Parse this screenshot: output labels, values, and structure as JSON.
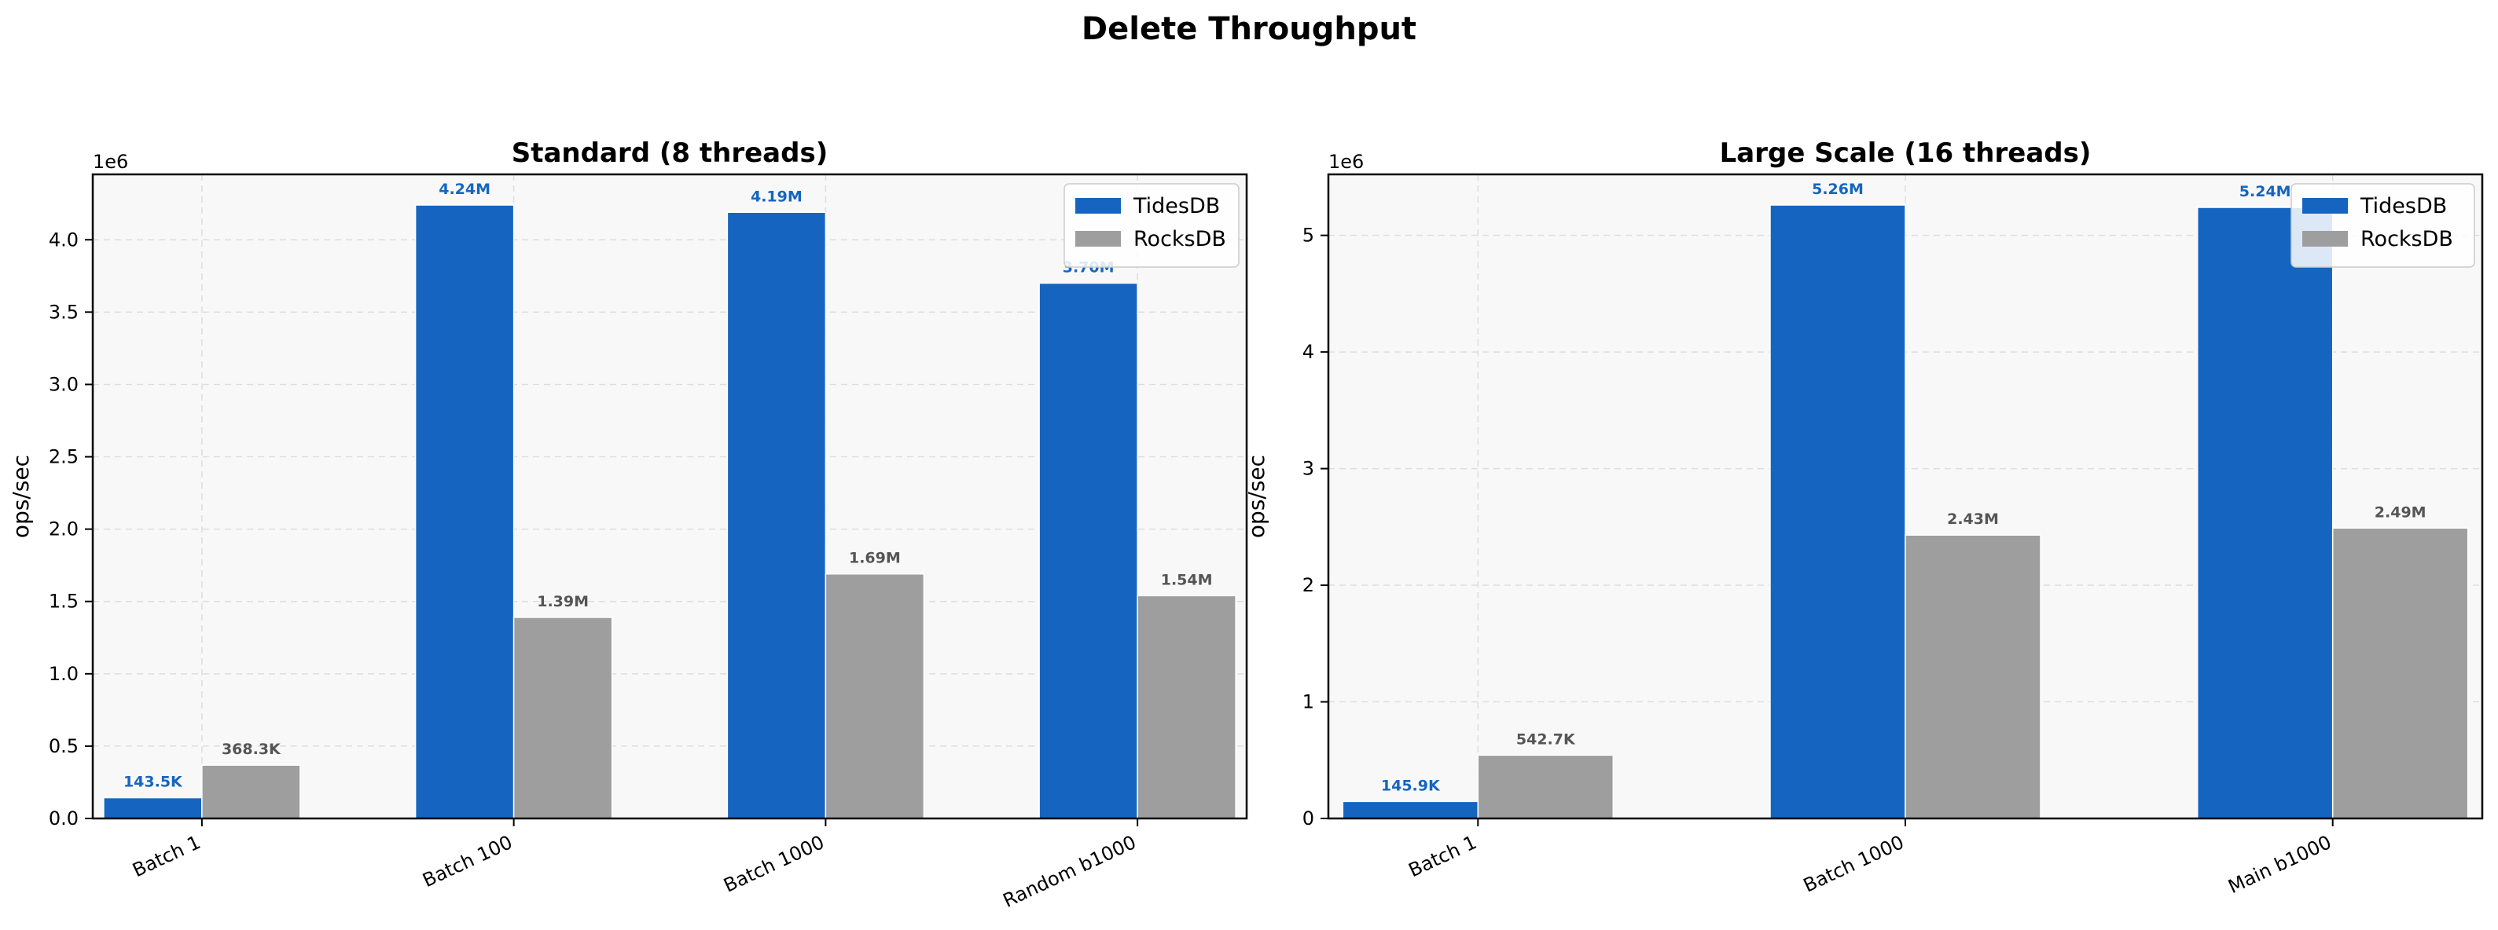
{
  "figure": {
    "title": "Delete Throughput"
  },
  "colors": {
    "tidesdb": "#1565c0",
    "rocksdb": "#9e9e9e",
    "plot_bg": "#f8f8f8",
    "grid": "#dddddd"
  },
  "chart_data": [
    {
      "type": "bar",
      "title": "Standard (8 threads)",
      "ylabel": "ops/sec",
      "xlabel": "",
      "offset_text": "1e6",
      "categories": [
        "Batch 1",
        "Batch 100",
        "Batch 1000",
        "Random b1000"
      ],
      "series": [
        {
          "name": "TidesDB",
          "values": [
            143500,
            4240000,
            4190000,
            3700000
          ],
          "labels": [
            "143.5K",
            "4.24M",
            "4.19M",
            "3.70M"
          ]
        },
        {
          "name": "RocksDB",
          "values": [
            368300,
            1390000,
            1690000,
            1540000
          ],
          "labels": [
            "368.3K",
            "1.39M",
            "1.69M",
            "1.54M"
          ]
        }
      ],
      "ylim": [
        0,
        4452000
      ],
      "yticks": [
        0,
        500000,
        1000000,
        1500000,
        2000000,
        2500000,
        3000000,
        3500000,
        4000000
      ],
      "ytick_labels": [
        "0.0",
        "0.5",
        "1.0",
        "1.5",
        "2.0",
        "2.5",
        "3.0",
        "3.5",
        "4.0"
      ],
      "grid": true,
      "legend": "top-right"
    },
    {
      "type": "bar",
      "title": "Large Scale (16 threads)",
      "ylabel": "ops/sec",
      "xlabel": "",
      "offset_text": "1e6",
      "categories": [
        "Batch 1",
        "Batch 1000",
        "Main b1000"
      ],
      "series": [
        {
          "name": "TidesDB",
          "values": [
            145900,
            5260000,
            5240000
          ],
          "labels": [
            "145.9K",
            "5.26M",
            "5.24M"
          ]
        },
        {
          "name": "RocksDB",
          "values": [
            542700,
            2430000,
            2490000
          ],
          "labels": [
            "542.7K",
            "2.43M",
            "2.49M"
          ]
        }
      ],
      "ylim": [
        0,
        5523000
      ],
      "yticks": [
        0,
        1000000,
        2000000,
        3000000,
        4000000,
        5000000
      ],
      "ytick_labels": [
        "0",
        "1",
        "2",
        "3",
        "4",
        "5"
      ],
      "grid": true,
      "legend": "top-right"
    }
  ]
}
